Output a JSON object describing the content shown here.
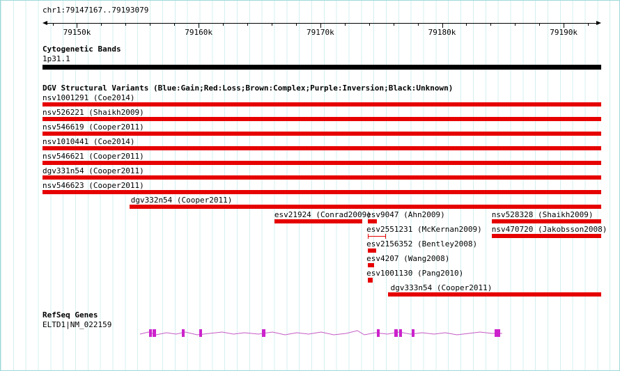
{
  "region": {
    "title": "chr1:79147167..79193079"
  },
  "colors": {
    "grid": "#d4efef",
    "loss_red": "#e60000",
    "band_black": "#000000",
    "gene_exon_magenta": "#cc22cc",
    "gene_line_violet": "#c45ac4"
  },
  "ruler": {
    "major_ticks": [
      {
        "label": "79150k",
        "pct": 6.17
      },
      {
        "label": "79160k",
        "pct": 27.95
      },
      {
        "label": "79170k",
        "pct": 49.73
      },
      {
        "label": "79180k",
        "pct": 71.51
      },
      {
        "label": "79190k",
        "pct": 93.29
      }
    ],
    "minor_tick_pcts": [
      1.81,
      10.53,
      14.88,
      19.24,
      23.6,
      32.31,
      36.66,
      41.02,
      45.38,
      54.09,
      58.44,
      62.8,
      67.16,
      75.87,
      80.23,
      84.58,
      88.94,
      97.65
    ]
  },
  "cytogenetic": {
    "title": "Cytogenetic Bands",
    "band": {
      "label": "1p31.1"
    }
  },
  "dgv": {
    "title": "DGV Structural Variants (Blue:Gain;Red:Loss;Brown:Complex;Purple:Inversion;Black:Unknown)",
    "features": [
      {
        "row": 0,
        "label": "nsv1001291 (Coe2014)",
        "label_pct": 0,
        "start_pct": 0,
        "end_pct": 100,
        "shape": "bar"
      },
      {
        "row": 1,
        "label": "nsv526221 (Shaikh2009)",
        "label_pct": 0,
        "start_pct": 0,
        "end_pct": 100,
        "shape": "bar"
      },
      {
        "row": 2,
        "label": "nsv546619 (Cooper2011)",
        "label_pct": 0,
        "start_pct": 0,
        "end_pct": 100,
        "shape": "bar"
      },
      {
        "row": 3,
        "label": "nsv1010441 (Coe2014)",
        "label_pct": 0,
        "start_pct": 0,
        "end_pct": 100,
        "shape": "bar"
      },
      {
        "row": 4,
        "label": "nsv546621 (Cooper2011)",
        "label_pct": 0,
        "start_pct": 0,
        "end_pct": 100,
        "shape": "bar"
      },
      {
        "row": 5,
        "label": "dgv331n54 (Cooper2011)",
        "label_pct": 0,
        "start_pct": 0,
        "end_pct": 100,
        "shape": "bar"
      },
      {
        "row": 6,
        "label": "nsv546623 (Cooper2011)",
        "label_pct": 0,
        "start_pct": 0,
        "end_pct": 100,
        "shape": "bar"
      },
      {
        "row": 7,
        "label": "dgv332n54 (Cooper2011)",
        "label_pct": 15.8,
        "start_pct": 15.6,
        "end_pct": 100,
        "shape": "bar"
      },
      {
        "row": 8,
        "label": "esv21924 (Conrad2009)",
        "label_pct": 41.5,
        "start_pct": 41.5,
        "end_pct": 57.2,
        "shape": "bar"
      },
      {
        "row": 8,
        "label": "esv9047 (Ahn2009)",
        "label_pct": 58.0,
        "start_pct": 58.2,
        "end_pct": 59.8,
        "shape": "bar"
      },
      {
        "row": 8,
        "label": "nsv528328 (Shaikh2009)",
        "label_pct": 80.4,
        "start_pct": 80.4,
        "end_pct": 100,
        "shape": "bar"
      },
      {
        "row": 9,
        "label": "esv2551231 (McKernan2009)",
        "label_pct": 58.0,
        "start_pct": 58.2,
        "end_pct": 61.2,
        "shape": "ibeam"
      },
      {
        "row": 9,
        "label": "nsv470720 (Jakobsson2008)",
        "label_pct": 80.4,
        "start_pct": 80.4,
        "end_pct": 100,
        "shape": "bar"
      },
      {
        "row": 10,
        "label": "esv2156352 (Bentley2008)",
        "label_pct": 58.0,
        "start_pct": 58.2,
        "end_pct": 59.7,
        "shape": "bar"
      },
      {
        "row": 11,
        "label": "esv4207 (Wang2008)",
        "label_pct": 58.0,
        "start_pct": 58.2,
        "end_pct": 59.4,
        "shape": "bar"
      },
      {
        "row": 12,
        "label": "esv1001130 (Pang2010)",
        "label_pct": 58.0,
        "start_pct": 58.2,
        "end_pct": 59.1,
        "shape": "box"
      },
      {
        "row": 13,
        "label": "dgv333n54 (Cooper2011)",
        "label_pct": 62.3,
        "start_pct": 61.8,
        "end_pct": 100,
        "shape": "bar"
      }
    ]
  },
  "refseq": {
    "title": "RefSeq Genes",
    "gene": {
      "label": "ELTD1|NM_022159",
      "exons": [
        {
          "left_pct": 19.05,
          "width": 4
        },
        {
          "left_pct": 19.75,
          "width": 5
        },
        {
          "left_pct": 24.9,
          "width": 4
        },
        {
          "left_pct": 28.1,
          "width": 4
        },
        {
          "left_pct": 39.3,
          "width": 5
        },
        {
          "left_pct": 59.85,
          "width": 4
        },
        {
          "left_pct": 62.95,
          "width": 5
        },
        {
          "left_pct": 63.85,
          "width": 4
        },
        {
          "left_pct": 66.1,
          "width": 4
        },
        {
          "left_pct": 80.9,
          "width": 8
        }
      ]
    }
  }
}
